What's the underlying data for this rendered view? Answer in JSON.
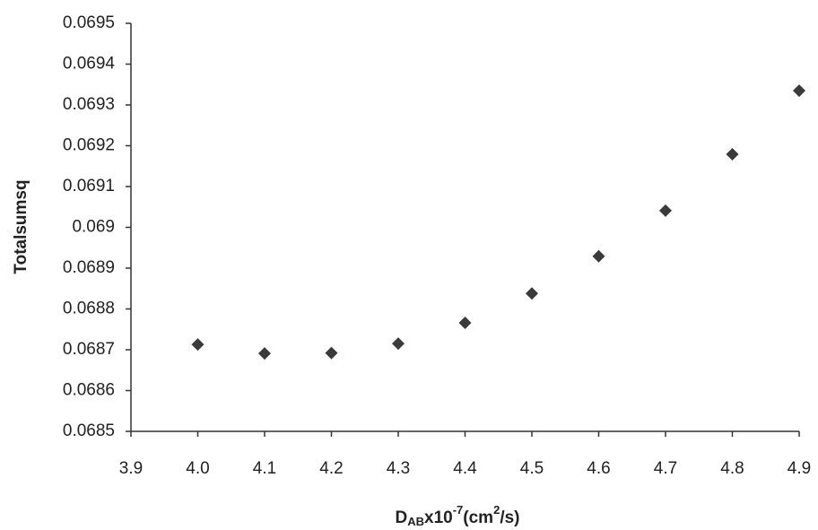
{
  "chart_data": {
    "type": "scatter",
    "y_label": "Totalsumsq",
    "x_label_parts": [
      "D",
      "AB",
      "x10",
      "-7",
      "(cm",
      "2",
      "/s)"
    ],
    "x": [
      4.0,
      4.1,
      4.2,
      4.3,
      4.4,
      4.5,
      4.6,
      4.7,
      4.8,
      4.9
    ],
    "values": [
      0.068713,
      0.068691,
      0.068692,
      0.068715,
      0.068766,
      0.068838,
      0.068929,
      0.069041,
      0.069179,
      0.069335
    ],
    "color": "#3a3a3a",
    "marker": "diamond",
    "xlim": [
      3.9,
      4.9
    ],
    "xticks": [
      3.9,
      {
        "value": 4.0,
        "label": "4.0"
      },
      4.1,
      4.2,
      4.3,
      4.4,
      4.5,
      4.6,
      4.7,
      4.8,
      4.9
    ],
    "ylim": [
      0.0685,
      0.0695
    ],
    "yticks": [
      0.0685,
      0.0686,
      0.0687,
      0.0688,
      0.0689,
      0.069,
      0.0691,
      0.0692,
      0.0693,
      0.0694,
      0.0695
    ],
    "grid": false
  }
}
